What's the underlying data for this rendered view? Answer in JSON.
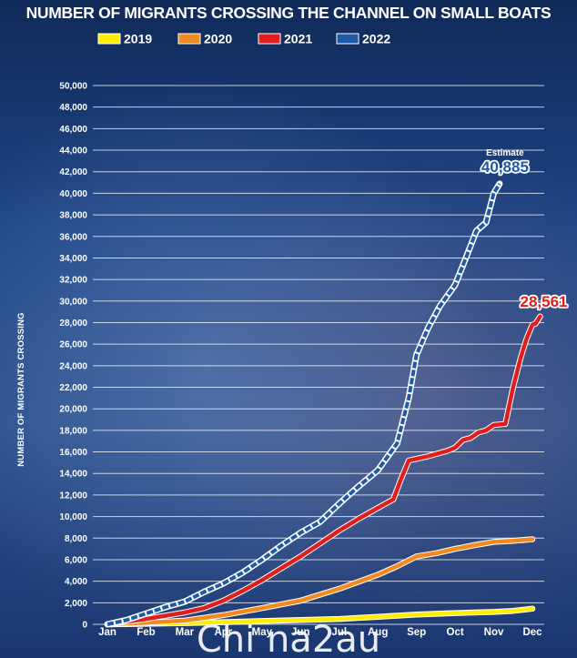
{
  "chart_data": {
    "type": "line",
    "title": "NUMBER OF MIGRANTS CROSSING THE CHANNEL ON SMALL BOATS",
    "ylabel": "NUMBER OF MIGRANTS CROSSING",
    "xlabel": "",
    "x_tick_labels": [
      "Jan",
      "Feb",
      "Mar",
      "Apr",
      "May",
      "Jun",
      "Jul",
      "Aug",
      "Sep",
      "Oct",
      "Nov",
      "Dec"
    ],
    "y_tick_labels": [
      "0",
      "2,000",
      "4,000",
      "6,000",
      "8,000",
      "10,000",
      "12,000",
      "14,000",
      "16,000",
      "18,000",
      "20,000",
      "22,000",
      "24,000",
      "26,000",
      "28,000",
      "30,000",
      "32,000",
      "34,000",
      "36,000",
      "38,000",
      "40,000",
      "42,000",
      "44,000",
      "46,000",
      "48,000",
      "50,000"
    ],
    "ylim": [
      0,
      50000
    ],
    "xlim": [
      1,
      12
    ],
    "grid": true,
    "legend_position": "top",
    "series": [
      {
        "name": "2019",
        "color": "#ffee00",
        "style": "solid",
        "points": [
          [
            1,
            0
          ],
          [
            2,
            50
          ],
          [
            3,
            120
          ],
          [
            4,
            200
          ],
          [
            5,
            300
          ],
          [
            6,
            400
          ],
          [
            7,
            500
          ],
          [
            8,
            700
          ],
          [
            9,
            900
          ],
          [
            10,
            1050
          ],
          [
            11,
            1150
          ],
          [
            11.5,
            1250
          ],
          [
            12,
            1450
          ]
        ]
      },
      {
        "name": "2020",
        "color": "#f28a1e",
        "style": "solid",
        "points": [
          [
            1,
            0
          ],
          [
            2,
            150
          ],
          [
            3,
            350
          ],
          [
            4,
            850
          ],
          [
            5,
            1500
          ],
          [
            6,
            2200
          ],
          [
            7,
            3300
          ],
          [
            8,
            4600
          ],
          [
            8.5,
            5400
          ],
          [
            9,
            6300
          ],
          [
            9.5,
            6600
          ],
          [
            10,
            7000
          ],
          [
            10.5,
            7350
          ],
          [
            11,
            7650
          ],
          [
            11.5,
            7750
          ],
          [
            12,
            7900
          ]
        ]
      },
      {
        "name": "2021",
        "color": "#e01e1e",
        "style": "solid",
        "points": [
          [
            1,
            0
          ],
          [
            2,
            500
          ],
          [
            3,
            1100
          ],
          [
            3.5,
            1500
          ],
          [
            4,
            2200
          ],
          [
            4.5,
            3100
          ],
          [
            5,
            4100
          ],
          [
            5.5,
            5200
          ],
          [
            6,
            6300
          ],
          [
            6.5,
            7500
          ],
          [
            7,
            8700
          ],
          [
            7.5,
            9800
          ],
          [
            8,
            10800
          ],
          [
            8.4,
            11600
          ],
          [
            8.6,
            13500
          ],
          [
            8.8,
            15200
          ],
          [
            9.3,
            15600
          ],
          [
            9.8,
            16100
          ],
          [
            10,
            16400
          ],
          [
            10.2,
            17100
          ],
          [
            10.4,
            17300
          ],
          [
            10.6,
            17800
          ],
          [
            10.8,
            18000
          ],
          [
            11,
            18500
          ],
          [
            11.3,
            18600
          ],
          [
            11.5,
            22000
          ],
          [
            11.7,
            24800
          ],
          [
            11.85,
            26500
          ],
          [
            12,
            27800
          ],
          [
            12.08,
            27900
          ],
          [
            12.2,
            28561
          ]
        ]
      },
      {
        "name": "2022",
        "color": "#1e5aa8",
        "style": "dashed-white",
        "points": [
          [
            1,
            0
          ],
          [
            1.5,
            400
          ],
          [
            2,
            1000
          ],
          [
            2.5,
            1600
          ],
          [
            3,
            2100
          ],
          [
            3.5,
            3000
          ],
          [
            4,
            3800
          ],
          [
            4.5,
            4800
          ],
          [
            5,
            6000
          ],
          [
            5.5,
            7300
          ],
          [
            6,
            8500
          ],
          [
            6.5,
            9500
          ],
          [
            7,
            11200
          ],
          [
            7.5,
            12800
          ],
          [
            8,
            14300
          ],
          [
            8.5,
            16800
          ],
          [
            8.8,
            21000
          ],
          [
            9,
            25000
          ],
          [
            9.3,
            27500
          ],
          [
            9.6,
            29500
          ],
          [
            10,
            31500
          ],
          [
            10.3,
            34200
          ],
          [
            10.55,
            36500
          ],
          [
            10.8,
            37300
          ],
          [
            11,
            40000
          ],
          [
            11.15,
            40885
          ]
        ]
      }
    ],
    "annotations": [
      {
        "label": "Estimate",
        "value": "40,885",
        "series": "2022"
      },
      {
        "label": "",
        "value": "28,561",
        "series": "2021"
      }
    ]
  },
  "watermark": "Chi na2au"
}
